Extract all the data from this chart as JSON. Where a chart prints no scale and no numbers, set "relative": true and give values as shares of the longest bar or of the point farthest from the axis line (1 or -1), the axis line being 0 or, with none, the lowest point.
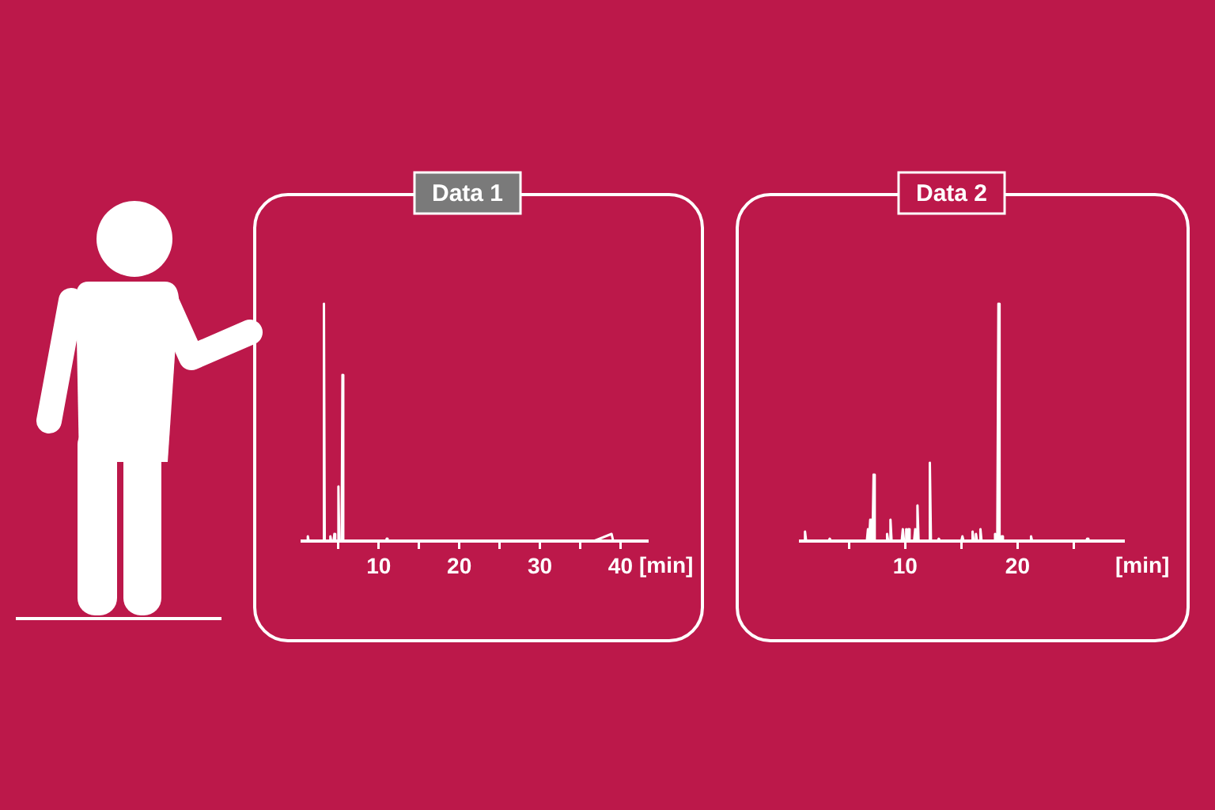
{
  "chart_data": [
    {
      "type": "line",
      "title": "Data 1",
      "xlabel": "[min]",
      "relative": true,
      "marker": "none",
      "tick_labels": "x",
      "color": "#ffffff",
      "xlim": [
        0.5,
        43.3
      ],
      "xticks": [
        {
          "value": 5,
          "label": null
        },
        10,
        {
          "value": 15,
          "label": null
        },
        20,
        {
          "value": 25,
          "label": null
        },
        30,
        {
          "value": 35,
          "label": null
        },
        40
      ],
      "x": [
        0.6,
        1.1,
        1.2,
        1.3,
        3.1,
        3.2,
        3.3,
        3.9,
        4.0,
        4.1,
        4.4,
        4.5,
        4.6,
        4.9,
        5.0,
        5.1,
        5.4,
        5.5,
        5.6,
        10.9,
        11.0,
        11.1,
        36.7,
        38.9,
        39.1,
        43.3
      ],
      "values": [
        0,
        0,
        0.02,
        0,
        0,
        1,
        0,
        0,
        0.02,
        0,
        0,
        0.03,
        0,
        0,
        0.23,
        0,
        0,
        0.7,
        0,
        0,
        0.01,
        0,
        0,
        0.03,
        0,
        0
      ]
    },
    {
      "type": "line",
      "title": "Data 2",
      "xlabel": "[min]",
      "relative": true,
      "marker": "none",
      "tick_labels": "x",
      "color": "#ffffff",
      "xlim": [
        0.7,
        29.4
      ],
      "xticks": [
        {
          "value": 5,
          "label": null
        },
        10,
        {
          "value": 15,
          "label": null
        },
        20,
        {
          "value": 25,
          "label": null
        }
      ],
      "x": [
        0.7,
        1.0,
        1.1,
        1.2,
        3.2,
        3.3,
        3.4,
        6.6,
        6.7,
        6.8,
        6.9,
        7.0,
        7.1,
        7.2,
        7.3,
        8.3,
        8.4,
        8.5,
        8.6,
        8.7,
        8.8,
        9.7,
        9.8,
        9.9,
        10.0,
        10.1,
        10.2,
        10.3,
        10.4,
        10.8,
        10.9,
        11.0,
        11.1,
        11.2,
        12.1,
        12.2,
        12.3,
        12.9,
        13.0,
        13.1,
        15.0,
        15.1,
        15.2,
        15.9,
        16.0,
        16.1,
        16.2,
        16.3,
        16.4,
        16.6,
        16.7,
        16.8,
        17.9,
        18.0,
        18.1,
        18.2,
        18.3,
        18.4,
        18.5,
        18.6,
        18.7,
        21.1,
        21.2,
        21.3,
        26.1,
        26.2,
        26.3,
        29.4
      ],
      "values": [
        0,
        0,
        0.04,
        0,
        0,
        0.01,
        0,
        0,
        0.05,
        0,
        0.09,
        0,
        0,
        0.28,
        0,
        0,
        0.03,
        0,
        0,
        0.09,
        0,
        0,
        0.05,
        0,
        0,
        0.05,
        0,
        0.05,
        0,
        0,
        0.05,
        0,
        0.15,
        0,
        0,
        0.33,
        0,
        0,
        0.01,
        0,
        0,
        0.02,
        0,
        0,
        0.04,
        0,
        0,
        0.03,
        0,
        0,
        0.05,
        0,
        0,
        0.03,
        0,
        0,
        1,
        0,
        0,
        0.02,
        0,
        0,
        0.02,
        0,
        0,
        0.01,
        0,
        0
      ]
    }
  ]
}
